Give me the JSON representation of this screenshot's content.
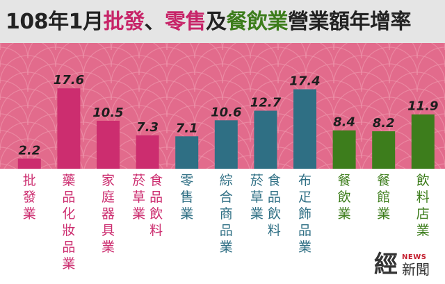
{
  "title": {
    "segments": [
      {
        "text": "108年1月",
        "color": "#222222"
      },
      {
        "text": "批發",
        "color": "#c72468"
      },
      {
        "text": "、",
        "color": "#222222"
      },
      {
        "text": "零售",
        "color": "#c72468"
      },
      {
        "text": "及",
        "color": "#222222"
      },
      {
        "text": "餐飲業",
        "color": "#3d7d1c"
      },
      {
        "text": "營業額年增率",
        "color": "#222222"
      }
    ]
  },
  "logo": {
    "mark": "經",
    "tag": "NEWS",
    "name": "新聞"
  },
  "colors": {
    "pink_band": "#e26b8c",
    "wave_line": "#ee93aa",
    "wholesale": "#cc2d6f",
    "retail": "#2f6f84",
    "food": "#3d7d1c"
  },
  "chart_data": {
    "type": "bar",
    "title": "108年1月批發、零售及餐飲業營業額年增率",
    "categories": [
      "批發業",
      "藥品化妝品業",
      "家庭器具業",
      "菸草業 食品飲料",
      "零售業",
      "綜合商品業",
      "菸草業 食品飲料",
      "布疋飾品業",
      "餐飲業",
      "餐館業",
      "飲料店業"
    ],
    "values": [
      2.2,
      17.6,
      10.5,
      7.3,
      7.1,
      10.6,
      12.7,
      17.4,
      8.4,
      8.2,
      11.9
    ],
    "groups": [
      "wholesale",
      "wholesale",
      "wholesale",
      "wholesale",
      "retail",
      "retail",
      "retail",
      "retail",
      "food",
      "food",
      "food"
    ],
    "label_columns": [
      [
        "批發業"
      ],
      [
        "藥品化妝品業"
      ],
      [
        "家庭器具業"
      ],
      [
        "菸草業",
        "食品飲料"
      ],
      [
        "零售業"
      ],
      [
        "綜合商品業"
      ],
      [
        "菸草業",
        "食品飲料"
      ],
      [
        "布疋飾品業"
      ],
      [
        "餐飲業"
      ],
      [
        "餐館業"
      ],
      [
        "飲料店業"
      ]
    ],
    "ylim": [
      0,
      20
    ],
    "grid": false,
    "legend": "none"
  }
}
